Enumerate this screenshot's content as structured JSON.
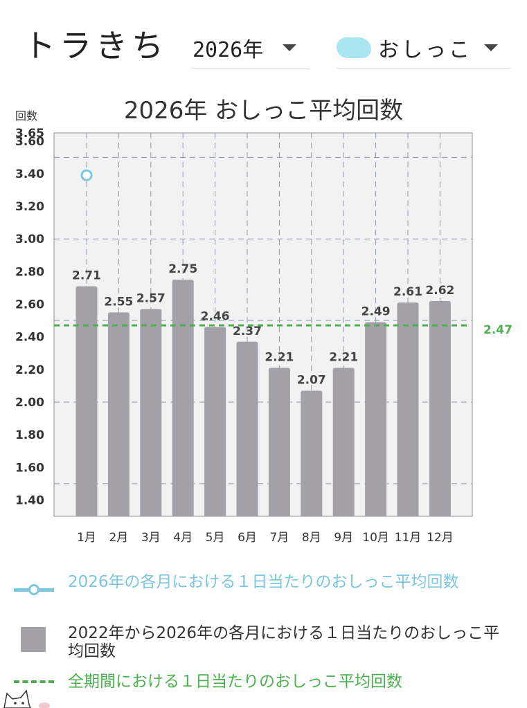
{
  "header": {
    "app_title": "トラきち",
    "year_select": "2026年",
    "category_select": "おしっこ"
  },
  "colors": {
    "bar": "#a3a1a7",
    "current_line": "#7cc6e0",
    "average_line": "#4caf50",
    "plot_bg": "#f2f2f2"
  },
  "chart_data": {
    "type": "bar",
    "title": "2026年 おしっこ平均回数",
    "ylabel": "回数",
    "ylim": [
      1.3,
      3.65
    ],
    "yticks": [
      "1.40",
      "1.60",
      "1.80",
      "2.00",
      "2.20",
      "2.40",
      "2.60",
      "2.80",
      "3.00",
      "3.20",
      "3.40",
      "3.60",
      "3.65"
    ],
    "categories": [
      "1月",
      "2月",
      "3月",
      "4月",
      "5月",
      "6月",
      "7月",
      "8月",
      "9月",
      "10月",
      "11月",
      "12月"
    ],
    "series": [
      {
        "legend_key": "bars",
        "values": [
          2.71,
          2.55,
          2.57,
          2.75,
          2.46,
          2.37,
          2.21,
          2.07,
          2.21,
          2.49,
          2.61,
          2.62
        ],
        "labels": [
          "2.71",
          "2.55",
          "2.57",
          "2.75",
          "2.46",
          "2.37",
          "2.21",
          "2.07",
          "2.21",
          "2.49",
          "2.61",
          "2.62"
        ]
      },
      {
        "legend_key": "current",
        "points": [
          {
            "x": "1月",
            "y": 3.39
          }
        ]
      }
    ],
    "average": {
      "value": 2.47,
      "label": "2.47"
    },
    "grid": true
  },
  "legend": {
    "current": "2026年の各月における１日当たりのおしっこ平均回数",
    "bars": "2022年から2026年の各月における１日当たりのおしっこ平均回数",
    "average": "全期間における１日当たりのおしっこ平均回数"
  }
}
